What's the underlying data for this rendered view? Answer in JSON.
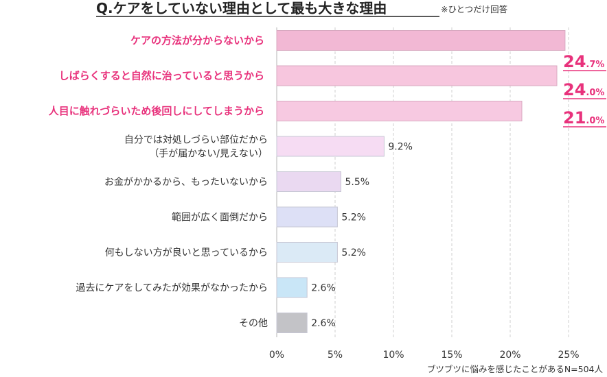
{
  "chart_data": {
    "type": "bar",
    "orientation": "horizontal",
    "title": "Q.ケアをしていない理由として最も大きな理由",
    "title_note": "※ひとつだけ回答",
    "categories": [
      [
        "ケアの方法が分からないから"
      ],
      [
        "しばらくすると自然に治っていると思うから"
      ],
      [
        "人目に触れづらいため後回しにしてしまうから"
      ],
      [
        "自分では対処しづらい部位だから",
        "（手が届かない/見えない）"
      ],
      [
        "お金がかかるから、もったいないから"
      ],
      [
        "範囲が広く面倒だから"
      ],
      [
        "何もしない方が良いと思っているから"
      ],
      [
        "過去にケアをしてみたが効果がなかったから"
      ],
      [
        "その他"
      ]
    ],
    "values": [
      24.7,
      24.0,
      21.0,
      9.2,
      5.5,
      5.2,
      5.2,
      2.6,
      2.6
    ],
    "value_labels": [
      {
        "main": "24",
        "suffix": ".7%"
      },
      {
        "main": "24",
        "suffix": ".0%"
      },
      {
        "main": "21",
        "suffix": ".0%"
      },
      {
        "main": "9.2%",
        "suffix": ""
      },
      {
        "main": "5.5%",
        "suffix": ""
      },
      {
        "main": "5.2%",
        "suffix": ""
      },
      {
        "main": "5.2%",
        "suffix": ""
      },
      {
        "main": "2.6%",
        "suffix": ""
      },
      {
        "main": "2.6%",
        "suffix": ""
      }
    ],
    "highlighted_top": 3,
    "bar_colors": [
      "#f2b8d4",
      "#f7c6de",
      "#f7c9e1",
      "#f6dcf3",
      "#ead9f1",
      "#dde0f6",
      "#dbeaf6",
      "#c9e6f7",
      "#c3c3c7"
    ],
    "accent_color": "#e8327c",
    "xlim": [
      0,
      25
    ],
    "xticks": [
      "0%",
      "5%",
      "10%",
      "15%",
      "20%",
      "25%"
    ],
    "grid": "vertical-dashed",
    "footnote": "ブツブツに悩みを感じたことがあるN=504人"
  }
}
